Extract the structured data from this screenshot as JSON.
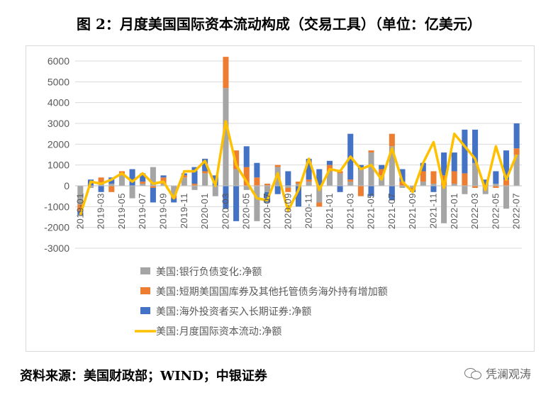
{
  "title": "图 2：月度美国国际资本流动构成（交易工具）（单位：亿美元）",
  "source": "资料来源：美国财政部；WIND；中银证券",
  "watermark": "凭澜观涛",
  "colors": {
    "bank": "#A5A5A5",
    "short": "#ED7D31",
    "long": "#4472C4",
    "total": "#FFC000",
    "grid": "#D9D9D9",
    "axis_text": "#595959"
  },
  "chart_data": {
    "type": "bar",
    "stacked": true,
    "ylim": [
      -3000,
      6000
    ],
    "yticks": [
      -3000,
      -2000,
      -1000,
      0,
      1000,
      2000,
      3000,
      4000,
      5000,
      6000
    ],
    "grid": true,
    "legend_position": "bottom",
    "categories": [
      "2019-01",
      "2019-02",
      "2019-03",
      "2019-04",
      "2019-05",
      "2019-06",
      "2019-07",
      "2019-08",
      "2019-09",
      "2019-10",
      "2019-11",
      "2019-12",
      "2020-01",
      "2020-02",
      "2020-03",
      "2020-04",
      "2020-05",
      "2020-06",
      "2020-07",
      "2020-08",
      "2020-09",
      "2020-10",
      "2020-11",
      "2020-12",
      "2021-01",
      "2021-02",
      "2021-03",
      "2021-04",
      "2021-05",
      "2021-06",
      "2021-07",
      "2021-08",
      "2021-09",
      "2021-10",
      "2021-11",
      "2021-12",
      "2022-01",
      "2022-02",
      "2022-03",
      "2022-04",
      "2022-05",
      "2022-06",
      "2022-07"
    ],
    "tick_labels": [
      "2019-01",
      "2019-03",
      "2019-05",
      "2019-07",
      "2019-09",
      "2019-11",
      "2020-01",
      "2020-03",
      "2020-05",
      "2020-07",
      "2020-09",
      "2020-11",
      "2021-01",
      "2021-03",
      "2021-05",
      "2021-07",
      "2021-09",
      "2021-11",
      "2022-01",
      "2022-03",
      "2022-05",
      "2022-07"
    ],
    "series": [
      {
        "name": "美国:银行负债变化:净额",
        "kind": "bar",
        "values": [
          -900,
          -100,
          100,
          100,
          500,
          -600,
          100,
          900,
          100,
          -500,
          400,
          -200,
          600,
          -500,
          4700,
          800,
          -200,
          -1700,
          -300,
          900,
          -100,
          100,
          200,
          -800,
          700,
          600,
          200,
          800,
          1600,
          500,
          1900,
          -100,
          -100,
          200,
          100,
          -1800,
          100,
          -400,
          1100,
          -400,
          100,
          -1100,
          1500
        ]
      },
      {
        "name": "美国:短期美国国库券及其他托管债务海外持有增加额",
        "kind": "bar",
        "values": [
          -300,
          0,
          300,
          -300,
          200,
          0,
          100,
          -100,
          300,
          -100,
          100,
          100,
          100,
          0,
          1500,
          900,
          900,
          400,
          100,
          100,
          -200,
          100,
          100,
          -200,
          300,
          100,
          100,
          -500,
          100,
          300,
          600,
          200,
          -100,
          500,
          600,
          500,
          600,
          600,
          -100,
          0,
          -100,
          300,
          300
        ]
      },
      {
        "name": "美国:海外投资者买入长期证券:净额",
        "kind": "bar",
        "values": [
          -200,
          300,
          -300,
          300,
          0,
          800,
          400,
          -700,
          100,
          -200,
          100,
          800,
          600,
          500,
          -1100,
          -1700,
          1000,
          700,
          -500,
          -400,
          700,
          -1000,
          1000,
          800,
          200,
          -300,
          2200,
          200,
          -500,
          200,
          -700,
          600,
          -100,
          400,
          -300,
          1100,
          900,
          2100,
          1600,
          300,
          600,
          1400,
          1200
        ]
      },
      {
        "name": "美国:月度国际资本流动:净额",
        "kind": "line",
        "values": [
          -1400,
          200,
          100,
          300,
          600,
          200,
          600,
          100,
          200,
          -600,
          700,
          700,
          1200,
          0,
          3100,
          1000,
          200,
          -600,
          -700,
          600,
          -1200,
          -200,
          1300,
          -200,
          800,
          700,
          1400,
          800,
          1000,
          300,
          1800,
          200,
          -300,
          1100,
          2100,
          -100,
          2500,
          1900,
          1300,
          -200,
          1900,
          300,
          1500
        ]
      }
    ]
  }
}
